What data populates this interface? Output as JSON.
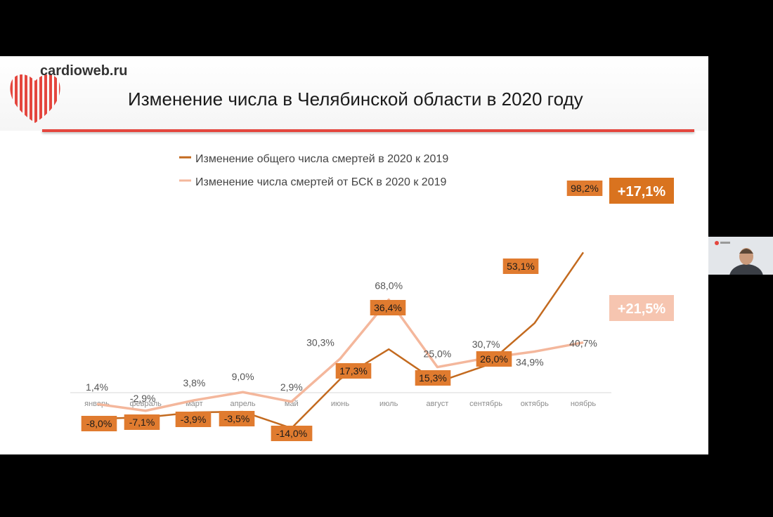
{
  "header": {
    "site": "cardioweb.ru",
    "title": "Изменение числа в Челябинской области в 2020 году"
  },
  "colors": {
    "series_total": "#c36a1f",
    "series_bsk": "#f4b79c",
    "accent_red": "#e4463e",
    "label_box": "#e07b2f",
    "badge_total": "#d9731f",
    "badge_bsk": "#f6c5b0"
  },
  "icons": [
    "cardioweb-logo",
    "participant-video"
  ],
  "chart_data": {
    "type": "line",
    "title": "",
    "xlabel": "",
    "ylabel": "",
    "ylim": [
      -20,
      100
    ],
    "grid": false,
    "legend": "top",
    "categories": [
      "январь",
      "февраль",
      "март",
      "апрель",
      "май",
      "июнь",
      "июль",
      "август",
      "сентябрь",
      "октябрь",
      "ноябрь"
    ],
    "series": [
      {
        "name": "Изменение общего числа смертей в 2020 к 2019",
        "values": [
          -8.0,
          -7.1,
          -3.9,
          -3.5,
          -14.0,
          17.3,
          36.4,
          15.3,
          26.0,
          53.1,
          98.2
        ],
        "labels": [
          "-8,0%",
          "-7,1%",
          "-3,9%",
          "-3,5%",
          "-14,0%",
          "17,3%",
          "36,4%",
          "15,3%",
          "26,0%",
          "53,1%",
          "98,2%"
        ],
        "badge": "+17,1%"
      },
      {
        "name": "Изменение числа смертей от БСК в 2020 к 2019",
        "values": [
          1.4,
          -2.9,
          3.8,
          9.0,
          2.9,
          30.3,
          68.0,
          25.0,
          30.7,
          34.9,
          40.7
        ],
        "labels": [
          "1,4%",
          "-2,9%",
          "3,8%",
          "9,0%",
          "2,9%",
          "30,3%",
          "68,0%",
          "25,0%",
          "30,7%",
          "34,9%",
          "40,7%"
        ],
        "badge": "+21,5%"
      }
    ]
  }
}
